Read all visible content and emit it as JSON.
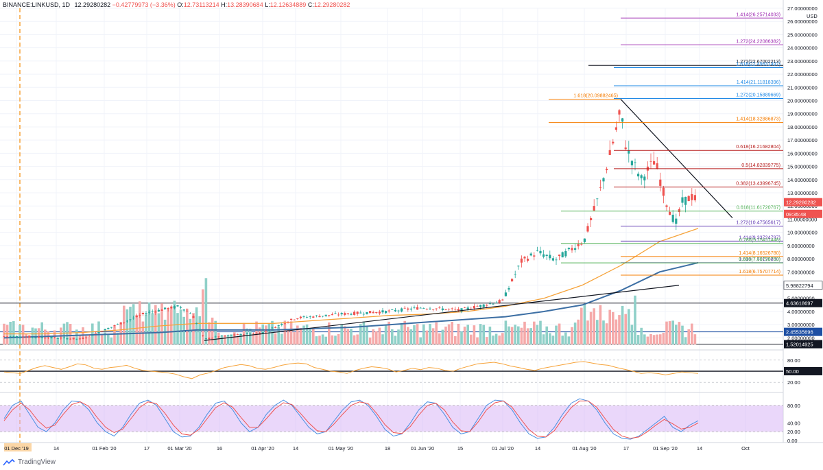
{
  "header": {
    "symbol": "BINANCE:LINKUSD, 1D",
    "last": "12.29280282",
    "change": "−0.42779973 (−3.36%)",
    "open_label": "O:",
    "open": "12.73113214",
    "high_label": "H:",
    "high": "13.28390684",
    "low_label": "L:",
    "low": "12.12634889",
    "close_label": "C:",
    "close": "12.29280282"
  },
  "footer": {
    "brand": "TradingView"
  },
  "colors": {
    "up": "#26a69a",
    "down": "#ef5350",
    "up_vol": "#8fd0c8",
    "down_vol": "#f5a9a9",
    "ma_orange": "#f6a33a",
    "ma_blue": "#3d6fa4",
    "rsi": "#f6a33a",
    "stoch_k": "#4a90e2",
    "stoch_d": "#ef5350",
    "stoch_band": "#d9b7f5",
    "fib_orange": "#f57c00",
    "fib_green": "#4caf50",
    "fib_red": "#b71c1c",
    "fib_purple": "#9c27b0",
    "fib_blue": "#1e88e5",
    "fib_darkblue": "#1565c0",
    "vertical_marker": "#f6a33a"
  },
  "chart_data": [
    {
      "type": "line",
      "title": "",
      "currency": "USD",
      "price_axis_ticks": [
        "27.00000000",
        "26.00000000",
        "25.00000000",
        "24.00000000",
        "23.00000000",
        "22.00000000",
        "21.00000000",
        "20.00000000",
        "19.00000000",
        "18.00000000",
        "17.00000000",
        "16.00000000",
        "15.00000000",
        "14.00000000",
        "13.00000000",
        "12.00000000",
        "11.00000000",
        "10.00000000",
        "9.00000000",
        "8.00000000",
        "7.00000000",
        "6.00000000",
        "5.00000000",
        "4.00000000",
        "3.00000000",
        "2.00000000"
      ],
      "ylim": [
        1.5,
        27
      ],
      "time_axis_labels": [
        "01 Dec '19",
        "14",
        "01 Feb '20",
        "17",
        "01 Mar '20",
        "16",
        "01 Apr '20",
        "14",
        "01 May '20",
        "18",
        "01 Jun '20",
        "15",
        "01 Jul '20",
        "14",
        "01 Aug '20",
        "17",
        "01 Sep '20",
        "14",
        "Oct"
      ],
      "price_tags": [
        {
          "text": "12.29280282",
          "price": 12.29,
          "bg": "#ef5350"
        },
        {
          "text": "09:35:48",
          "price": 11.4,
          "bg": "#ef5350"
        },
        {
          "text": "5.98822794",
          "price": 5.988,
          "bg": "#ffffff"
        },
        {
          "text": "4.63618697",
          "price": 4.636,
          "bg": "#131722"
        },
        {
          "text": "2.45535696",
          "price": 2.455,
          "bg": "#1e4fa3"
        },
        {
          "text": "1.52014925",
          "price": 1.52,
          "bg": "#131722"
        }
      ],
      "close_path": [
        [
          "01 Dec '19",
          2.1
        ],
        [
          "14",
          2.0
        ],
        [
          "01 Jan",
          1.9
        ],
        [
          "01 Feb '20",
          2.6
        ],
        [
          "17",
          3.9
        ],
        [
          "01 Mar '20",
          4.4
        ],
        [
          "07 Mar",
          3.8
        ],
        [
          "12 Mar",
          1.9
        ],
        [
          "16",
          2.1
        ],
        [
          "01 Apr '20",
          2.4
        ],
        [
          "14",
          3.5
        ],
        [
          "01 May '20",
          3.8
        ],
        [
          "18",
          4.0
        ],
        [
          "01 Jun '20",
          4.3
        ],
        [
          "15",
          4.1
        ],
        [
          "01 Jul '20",
          4.8
        ],
        [
          "07 Jul",
          7.8
        ],
        [
          "14",
          8.5
        ],
        [
          "23 Jul",
          7.9
        ],
        [
          "01 Aug '20",
          9.4
        ],
        [
          "07 Aug",
          12.6
        ],
        [
          "11 Aug",
          15.6
        ],
        [
          "15 Aug",
          19.2
        ],
        [
          "17",
          16.4
        ],
        [
          "22 Aug",
          14.0
        ],
        [
          "28 Aug",
          15.5
        ],
        [
          "01 Sep '20",
          12.5
        ],
        [
          "05 Sep",
          10.6
        ],
        [
          "08 Sep",
          12.3
        ],
        [
          "11 Sep",
          12.73
        ],
        [
          "12 Sep",
          12.29
        ]
      ],
      "moving_averages": [
        {
          "name": "MA",
          "color": "#f6a33a",
          "points": [
            2.3,
            2.3,
            2.4,
            2.6,
            2.9,
            3.1,
            3.1,
            3.1,
            3.3,
            3.5,
            3.7,
            3.8,
            4.0,
            4.4,
            5.0,
            6.0,
            7.5,
            9.3,
            10.3
          ]
        },
        {
          "name": "MA",
          "color": "#3d6fa4",
          "points": [
            2.0,
            2.1,
            2.2,
            2.3,
            2.4,
            2.6,
            2.6,
            2.6,
            2.7,
            2.8,
            3.0,
            3.2,
            3.4,
            3.6,
            4.0,
            4.5,
            5.6,
            7.0,
            7.7
          ]
        }
      ],
      "fib_levels": [
        {
          "label": "1.414(26.25714033)",
          "price": 26.257,
          "color": "#9c27b0"
        },
        {
          "label": "1.272(24.22086382)",
          "price": 24.221,
          "color": "#9c27b0"
        },
        {
          "label": "1.272(22.67002213)",
          "price": 22.67,
          "color": "#131722"
        },
        {
          "label": "1.618(22.49631497)",
          "price": 22.496,
          "color": "#1e88e5"
        },
        {
          "label": "1.414(21.11818396)",
          "price": 21.118,
          "color": "#1e88e5"
        },
        {
          "label": "1.618(20.09882465)",
          "price": 20.099,
          "color": "#f57c00"
        },
        {
          "label": "1.272(20.15889669)",
          "price": 20.159,
          "color": "#1e88e5"
        },
        {
          "label": "1.414(18.32886873)",
          "price": 18.329,
          "color": "#f57c00"
        },
        {
          "label": "0.618(16.21682804)",
          "price": 16.217,
          "color": "#b71c1c"
        },
        {
          "label": "0.5(14.82839775)",
          "price": 14.828,
          "color": "#b71c1c"
        },
        {
          "label": "0.382(13.43996745)",
          "price": 13.44,
          "color": "#b71c1c"
        },
        {
          "label": "0.618(11.61720767)",
          "price": 11.617,
          "color": "#4caf50"
        },
        {
          "label": "1.272(10.47565617)",
          "price": 10.476,
          "color": "#5e35b1"
        },
        {
          "label": "1.414(9.33724797)",
          "price": 9.337,
          "color": "#5e35b1"
        },
        {
          "label": "0.786(9.15411448)",
          "price": 9.154,
          "color": "#4caf50"
        },
        {
          "label": "1.414(8.16526780)",
          "price": 8.165,
          "color": "#f57c00"
        },
        {
          "label": "1.618(7.70178830)",
          "price": 7.702,
          "color": "#5e35b1"
        },
        {
          "label": "0.886(7.68798759)",
          "price": 7.688,
          "color": "#4caf50"
        },
        {
          "label": "1.618(6.75707714)",
          "price": 6.757,
          "color": "#f57c00"
        }
      ]
    },
    {
      "type": "line",
      "title": "",
      "name": "RSI",
      "ylim": [
        0,
        100
      ],
      "ticks": [
        "80.00",
        "50.00",
        "20.00"
      ],
      "current_tag": "50.00",
      "values": [
        48,
        46,
        44,
        52,
        60,
        65,
        60,
        55,
        62,
        70,
        67,
        58,
        55,
        60,
        62,
        66,
        58,
        52,
        50,
        48,
        46,
        42,
        35,
        30,
        40,
        45,
        52,
        60,
        64,
        68,
        65,
        58,
        55,
        60,
        66,
        70,
        72,
        70,
        60,
        55,
        50,
        48,
        44,
        52,
        58,
        62,
        60,
        56,
        48,
        52,
        58,
        54,
        60,
        58,
        52,
        50,
        58,
        64,
        70,
        72,
        74,
        70,
        64,
        60,
        55,
        52,
        58,
        62,
        66,
        70,
        74,
        76,
        72,
        68,
        66,
        60,
        55,
        50,
        44,
        46,
        44,
        40,
        44,
        48,
        46,
        44
      ]
    },
    {
      "type": "line",
      "title": "",
      "name": "Stoch RSI",
      "ylim": [
        0,
        100
      ],
      "ticks": [
        "80.00",
        "40.00",
        "20.00",
        "0.00"
      ],
      "series": [
        {
          "name": "K",
          "color": "#4a90e2",
          "values": [
            50,
            80,
            90,
            60,
            30,
            20,
            40,
            70,
            90,
            88,
            70,
            40,
            20,
            10,
            30,
            60,
            85,
            92,
            80,
            50,
            20,
            8,
            10,
            30,
            60,
            85,
            90,
            70,
            40,
            20,
            30,
            60,
            80,
            92,
            80,
            55,
            30,
            15,
            20,
            45,
            70,
            88,
            92,
            80,
            55,
            25,
            10,
            15,
            40,
            70,
            88,
            85,
            60,
            30,
            15,
            20,
            50,
            80,
            92,
            90,
            70,
            40,
            15,
            5,
            8,
            30,
            60,
            85,
            95,
            90,
            70,
            40,
            15,
            5,
            3,
            10,
            25,
            40,
            55,
            30,
            20,
            35,
            45
          ]
        },
        {
          "name": "D",
          "color": "#ef5350",
          "values": [
            45,
            70,
            85,
            70,
            45,
            28,
            35,
            60,
            82,
            88,
            78,
            52,
            30,
            18,
            26,
            50,
            75,
            88,
            84,
            62,
            35,
            15,
            12,
            25,
            50,
            75,
            86,
            76,
            52,
            30,
            30,
            50,
            72,
            86,
            82,
            62,
            40,
            22,
            20,
            38,
            60,
            80,
            88,
            84,
            62,
            36,
            18,
            16,
            32,
            58,
            80,
            85,
            70,
            42,
            22,
            20,
            42,
            70,
            86,
            90,
            76,
            50,
            25,
            10,
            8,
            22,
            50,
            75,
            90,
            90,
            76,
            50,
            25,
            10,
            5,
            8,
            20,
            35,
            48,
            38,
            26,
            30,
            40
          ]
        }
      ]
    }
  ]
}
